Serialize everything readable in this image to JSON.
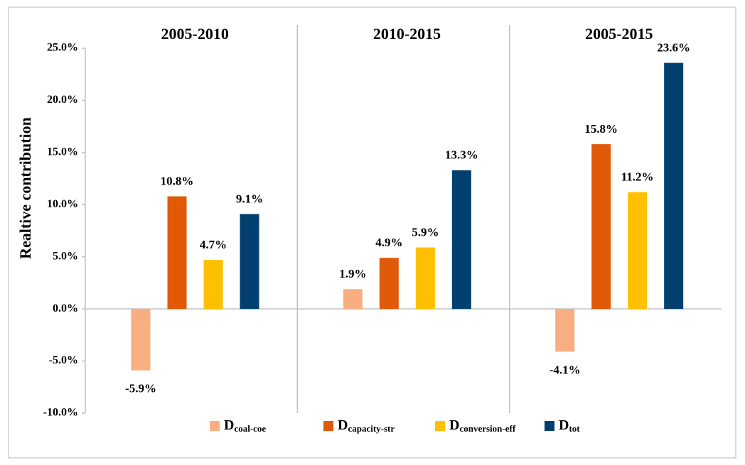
{
  "chart_data": {
    "type": "bar",
    "ylabel": "Realtive contribution",
    "categories": [
      "2005-2010",
      "2010-2015",
      "2005-2015"
    ],
    "series": [
      {
        "name": "Dcoal-coe",
        "color": "#f9ae82",
        "values": [
          -5.9,
          1.9,
          -4.1
        ],
        "value_labels": [
          "-5.9%",
          "1.9%",
          "-4.1%"
        ]
      },
      {
        "name": "Dcapacity-str",
        "color": "#e05a08",
        "values": [
          10.8,
          4.9,
          15.8
        ],
        "value_labels": [
          "10.8%",
          "4.9%",
          "15.8%"
        ]
      },
      {
        "name": "Dconversion-eff",
        "color": "#ffc000",
        "values": [
          4.7,
          5.9,
          11.2
        ],
        "value_labels": [
          "4.7%",
          "5.9%",
          "11.2%"
        ]
      },
      {
        "name": "Dtot",
        "color": "#003f6e",
        "values": [
          9.1,
          13.3,
          23.6
        ],
        "value_labels": [
          "9.1%",
          "13.3%",
          "23.6%"
        ]
      }
    ],
    "ylim": [
      -10,
      25
    ],
    "yticks": [
      {
        "value": -10,
        "label": "-10.0%"
      },
      {
        "value": -5,
        "label": "-5.0%"
      },
      {
        "value": 0,
        "label": "0.0%"
      },
      {
        "value": 5,
        "label": "5.0%"
      },
      {
        "value": 10,
        "label": "10.0%"
      },
      {
        "value": 15,
        "label": "15.0%"
      },
      {
        "value": 20,
        "label": "20.0%"
      },
      {
        "value": 25,
        "label": "25.0%"
      }
    ],
    "legend": "bottom"
  }
}
